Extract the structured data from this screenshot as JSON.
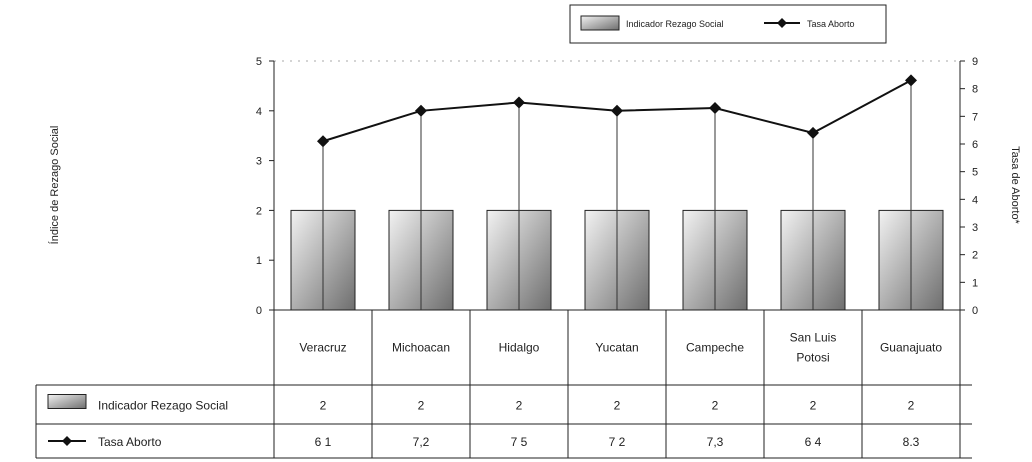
{
  "chart_data": {
    "type": "bar",
    "categories": [
      "Veracruz",
      "Michoacan",
      "Hidalgo",
      "Yucatan",
      "Campeche",
      "San Luis Potosi",
      "Guanajuato"
    ],
    "category_lines": [
      [
        "Veracruz"
      ],
      [
        "Michoacan"
      ],
      [
        "Hidalgo"
      ],
      [
        "Yucatan"
      ],
      [
        "Campeche"
      ],
      [
        "San Luis",
        "Potosi"
      ],
      [
        "Guanajuato"
      ]
    ],
    "series": [
      {
        "name": "Indicador Rezago Social",
        "type": "bar",
        "axis": "left",
        "values": [
          2,
          2,
          2,
          2,
          2,
          2,
          2
        ],
        "labels": [
          "2",
          "2",
          "2",
          "2",
          "2",
          "2",
          "2"
        ]
      },
      {
        "name": "Tasa Aborto",
        "type": "line",
        "axis": "right",
        "values": [
          6.1,
          7.2,
          7.5,
          7.2,
          7.3,
          6.4,
          8.3
        ],
        "labels": [
          "6 1",
          "7,2",
          "7 5",
          "7 2",
          "7,3",
          "6 4",
          "8.3"
        ]
      }
    ],
    "ylabel": "Índice de Rezago Social",
    "ylabel_right": "Tasa de Aborto*",
    "ylim": [
      0,
      5
    ],
    "ylim_right": [
      0,
      9
    ],
    "yticks": [
      "0",
      "1",
      "2",
      "3",
      "4",
      "5"
    ],
    "yticks_right": [
      "0",
      "1",
      "2",
      "3",
      "4",
      "5",
      "6",
      "7",
      "8",
      "9"
    ],
    "legend_position": "top-right",
    "data_table": true,
    "colors": {
      "bar_light": "#f2f2f2",
      "bar_dark": "#6e6e6e",
      "line": "#111111"
    }
  }
}
